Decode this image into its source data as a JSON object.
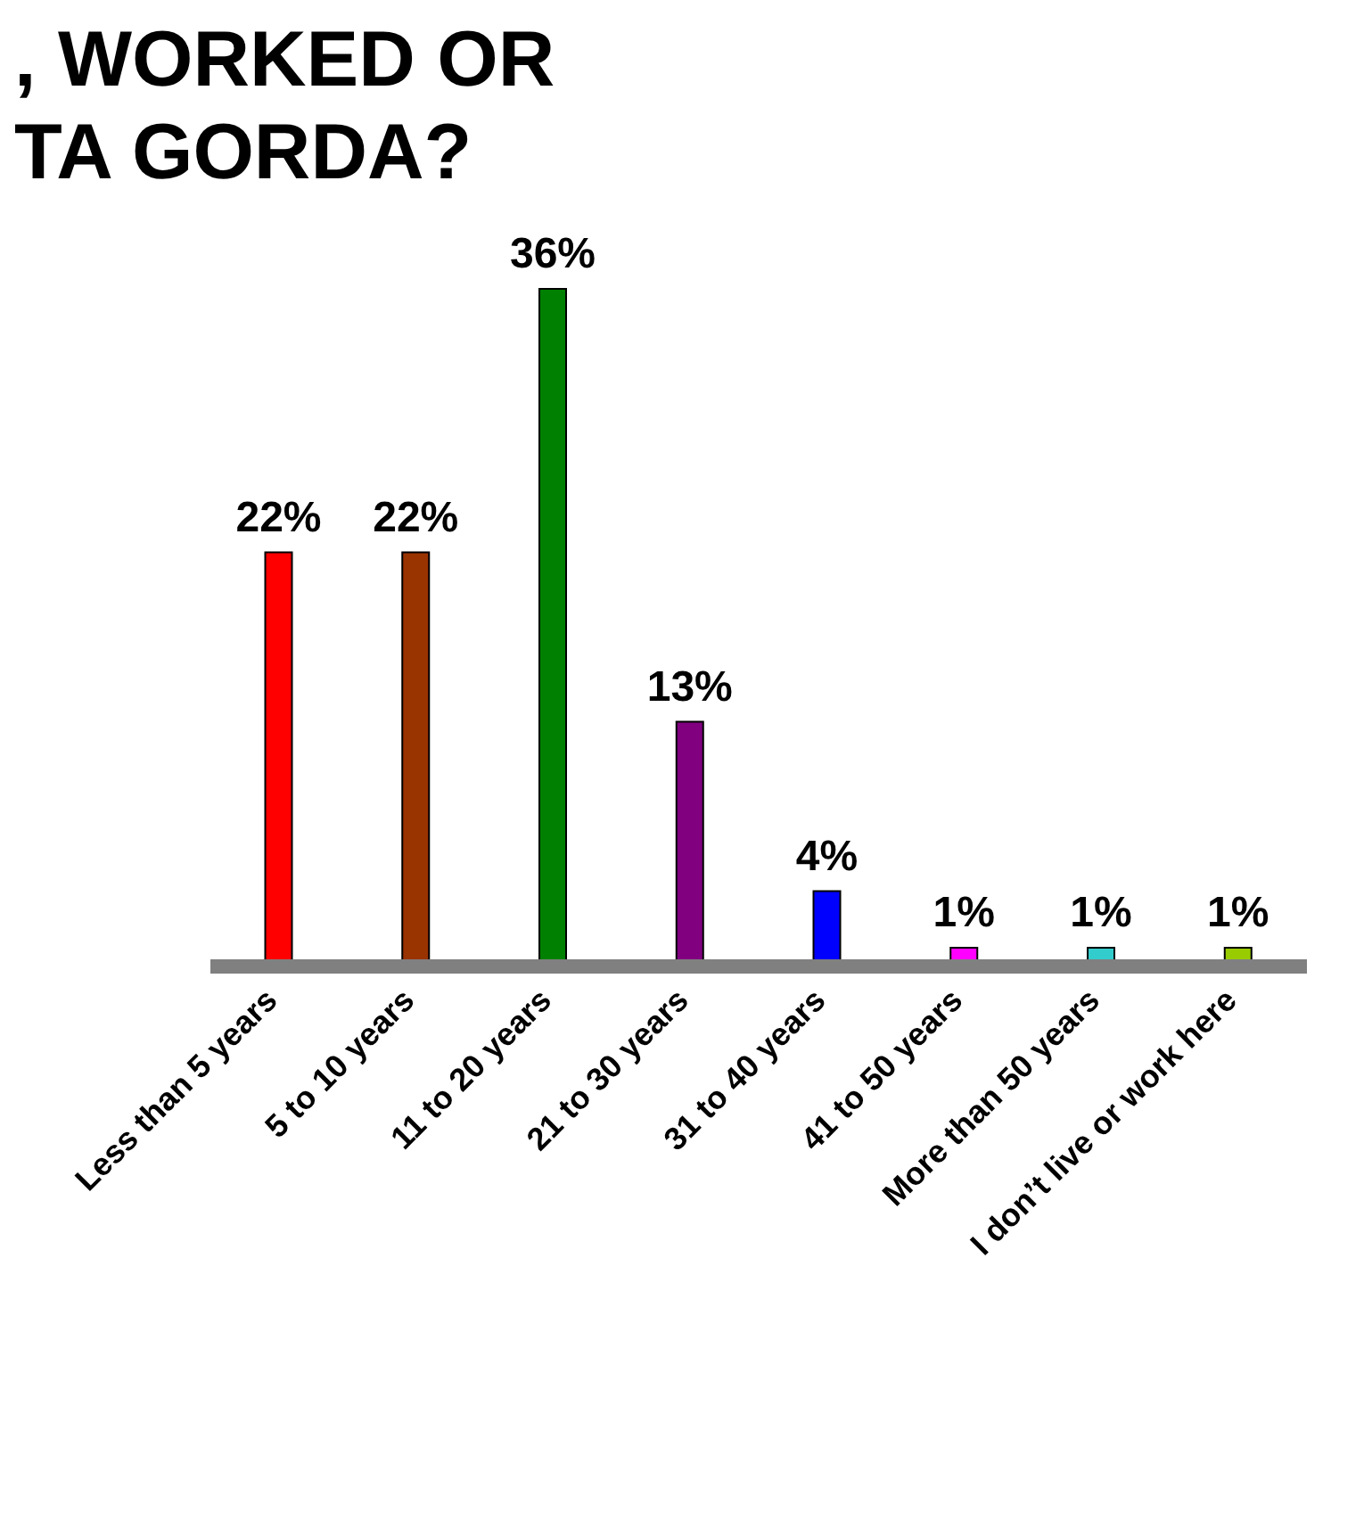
{
  "chart_data": {
    "type": "bar",
    "title": ", WORKED OR\nTA GORDA?",
    "categories": [
      "Less than 5 years",
      "5 to 10 years",
      "11 to 20 years",
      "21 to 30 years",
      "31 to 40 years",
      "41 to 50 years",
      "More than 50 years",
      "I don’t live or work here"
    ],
    "values": [
      22,
      22,
      36,
      13,
      4,
      1,
      1,
      1
    ],
    "colors": [
      "#ff0000",
      "#993300",
      "#008000",
      "#800080",
      "#0000ff",
      "#ff00ff",
      "#33cccc",
      "#99cc00"
    ],
    "value_labels": [
      "22%",
      "22%",
      "36%",
      "13%",
      "4%",
      "1%",
      "1%",
      "1%"
    ]
  }
}
